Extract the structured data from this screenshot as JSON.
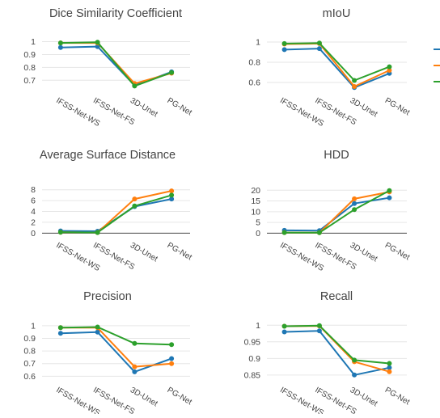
{
  "colors": {
    "series": [
      "#1f77b4",
      "#ff7f0e",
      "#2ca02c"
    ],
    "grid": "#e6e6e6",
    "axis": "#444444"
  },
  "chart_data": [
    {
      "type": "line",
      "title": "Dice Similarity Coefficient",
      "categories": [
        "IFSS-Net-WS",
        "IFSS-Net-FS",
        "3D-Unet",
        "PG-Net"
      ],
      "yticks": [
        "0.7",
        "0.8",
        "0.9",
        "1"
      ],
      "ylim": [
        0.62,
        1.06
      ],
      "grid": true,
      "series": [
        {
          "values": [
            0.955,
            0.962,
            0.66,
            0.765
          ]
        },
        {
          "values": [
            0.99,
            0.99,
            0.675,
            0.755
          ]
        },
        {
          "values": [
            0.99,
            0.995,
            0.655,
            0.76
          ]
        }
      ]
    },
    {
      "type": "line",
      "title": "mIoU",
      "categories": [
        "IFSS-Net-WS",
        "IFSS-Net-FS",
        "3D-Unet",
        "PG-Net"
      ],
      "yticks": [
        "0.6",
        "0.8",
        "1"
      ],
      "ylim": [
        0.52,
        1.08
      ],
      "grid": true,
      "series": [
        {
          "values": [
            0.925,
            0.935,
            0.55,
            0.69
          ]
        },
        {
          "values": [
            0.98,
            0.985,
            0.56,
            0.72
          ]
        },
        {
          "values": [
            0.985,
            0.99,
            0.62,
            0.755
          ]
        }
      ]
    },
    {
      "type": "line",
      "title": "Average Surface Distance",
      "categories": [
        "IFSS-Net-WS",
        "IFSS-Net-FS",
        "3D-Unet",
        "PG-Net"
      ],
      "yticks": [
        "0",
        "2",
        "4",
        "6",
        "8"
      ],
      "ylim": [
        -0.4,
        9.3
      ],
      "grid": true,
      "series": [
        {
          "values": [
            0.4,
            0.35,
            4.9,
            6.3
          ]
        },
        {
          "values": [
            0.15,
            0.1,
            6.3,
            7.8
          ]
        },
        {
          "values": [
            0.15,
            0.1,
            5.0,
            7.0
          ]
        }
      ]
    },
    {
      "type": "line",
      "title": "HDD",
      "categories": [
        "IFSS-Net-WS",
        "IFSS-Net-FS",
        "3D-Unet",
        "PG-Net"
      ],
      "yticks": [
        "0",
        "5",
        "10",
        "15",
        "20"
      ],
      "ylim": [
        -1,
        23.5
      ],
      "grid": true,
      "series": [
        {
          "values": [
            1.3,
            1.2,
            13.8,
            16.5
          ]
        },
        {
          "values": [
            0.3,
            0.2,
            16.0,
            19.2
          ]
        },
        {
          "values": [
            0.3,
            0.2,
            11.0,
            19.8
          ]
        }
      ]
    },
    {
      "type": "line",
      "title": "Precision",
      "categories": [
        "IFSS-Net-WS",
        "IFSS-Net-FS",
        "3D-Unet",
        "PG-Net"
      ],
      "yticks": [
        "0.6",
        "0.7",
        "0.8",
        "0.9",
        "1"
      ],
      "ylim": [
        0.57,
        1.07
      ],
      "grid": true,
      "series": [
        {
          "values": [
            0.94,
            0.95,
            0.635,
            0.74
          ]
        },
        {
          "values": [
            0.985,
            0.985,
            0.675,
            0.7
          ]
        },
        {
          "values": [
            0.985,
            0.99,
            0.86,
            0.85
          ]
        }
      ]
    },
    {
      "type": "line",
      "title": "Recall",
      "categories": [
        "IFSS-Net-WS",
        "IFSS-Net-FS",
        "3D-Unet",
        "PG-Net"
      ],
      "yticks": [
        "0.85",
        "0.9",
        "0.95",
        "1"
      ],
      "ylim": [
        0.835,
        1.025
      ],
      "grid": true,
      "series": [
        {
          "values": [
            0.98,
            0.983,
            0.85,
            0.872
          ]
        },
        {
          "values": [
            0.997,
            0.998,
            0.89,
            0.86
          ]
        },
        {
          "values": [
            0.997,
            0.999,
            0.895,
            0.885
          ]
        }
      ]
    }
  ]
}
